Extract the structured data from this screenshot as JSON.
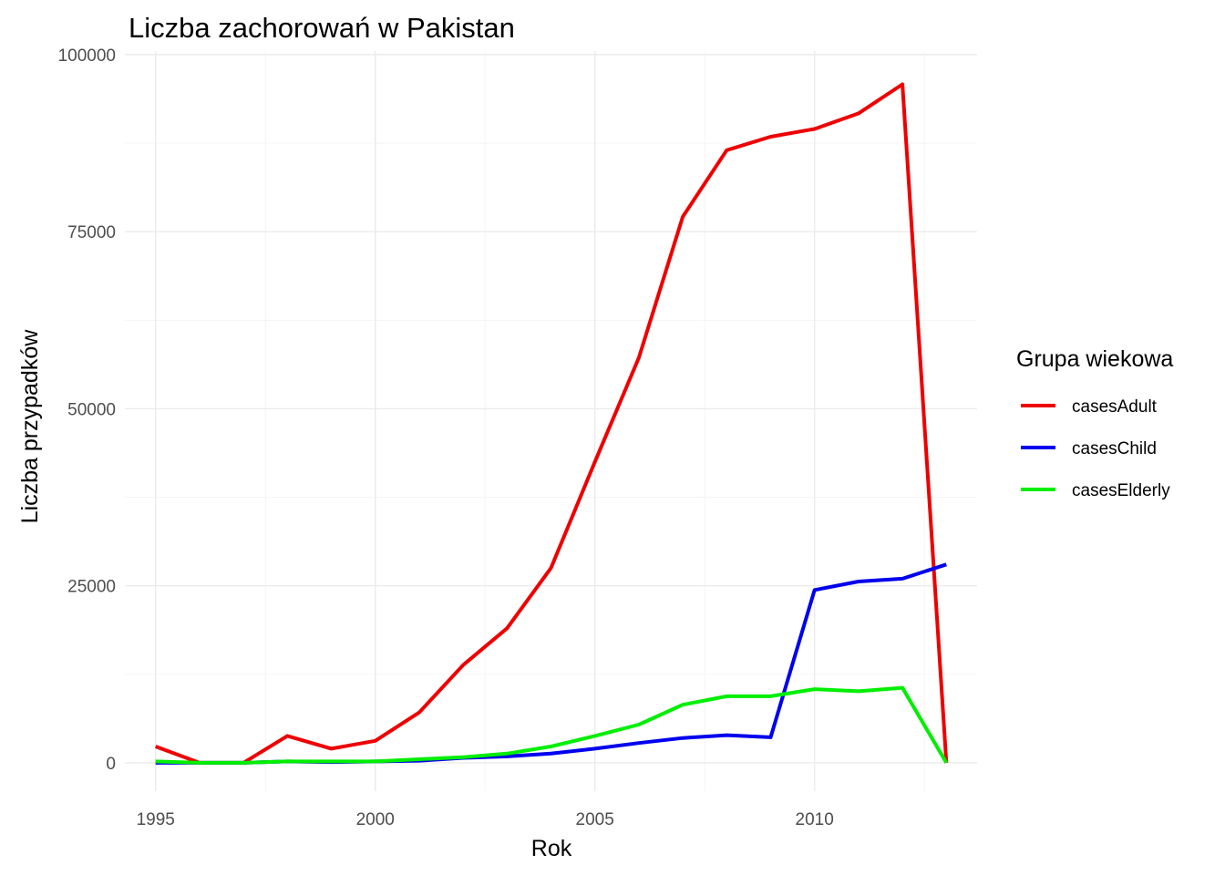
{
  "chart_data": {
    "type": "line",
    "title": "Liczba zachorowań w Pakistan",
    "xlabel": "Rok",
    "ylabel": "Liczba przypadków",
    "xlim": [
      1994.3,
      2013.7
    ],
    "ylim": [
      -4000,
      100500
    ],
    "x_ticks": [
      1995,
      2000,
      2005,
      2010
    ],
    "x_tick_labels": [
      "1995",
      "2000",
      "2005",
      "2010"
    ],
    "y_ticks": [
      0,
      25000,
      50000,
      75000,
      100000
    ],
    "y_tick_labels": [
      "0",
      "25000",
      "50000",
      "75000",
      "100000"
    ],
    "grid": true,
    "legend_title": "Grupa wiekowa",
    "legend_position": "right",
    "x": [
      1995,
      1996,
      1997,
      1998,
      1999,
      2000,
      2001,
      2002,
      2003,
      2004,
      2005,
      2006,
      2007,
      2008,
      2009,
      2010,
      2011,
      2012,
      2013
    ],
    "series": [
      {
        "name": "casesAdult",
        "color": "#ee0000",
        "values": [
          2300,
          0,
          0,
          3800,
          2000,
          3100,
          7100,
          13800,
          19000,
          27500,
          42500,
          57200,
          77100,
          86500,
          88400,
          89500,
          91700,
          95800,
          0
        ]
      },
      {
        "name": "casesChild",
        "color": "#0000ee",
        "values": [
          0,
          0,
          0,
          200,
          100,
          200,
          300,
          700,
          900,
          1300,
          2000,
          2800,
          3500,
          3900,
          3600,
          24400,
          25600,
          26000,
          28000
        ]
      },
      {
        "name": "casesElderly",
        "color": "#00ee00",
        "values": [
          200,
          0,
          0,
          200,
          200,
          200,
          500,
          800,
          1300,
          2300,
          3800,
          5400,
          8200,
          9400,
          9400,
          10400,
          10100,
          10600,
          0
        ]
      }
    ]
  }
}
